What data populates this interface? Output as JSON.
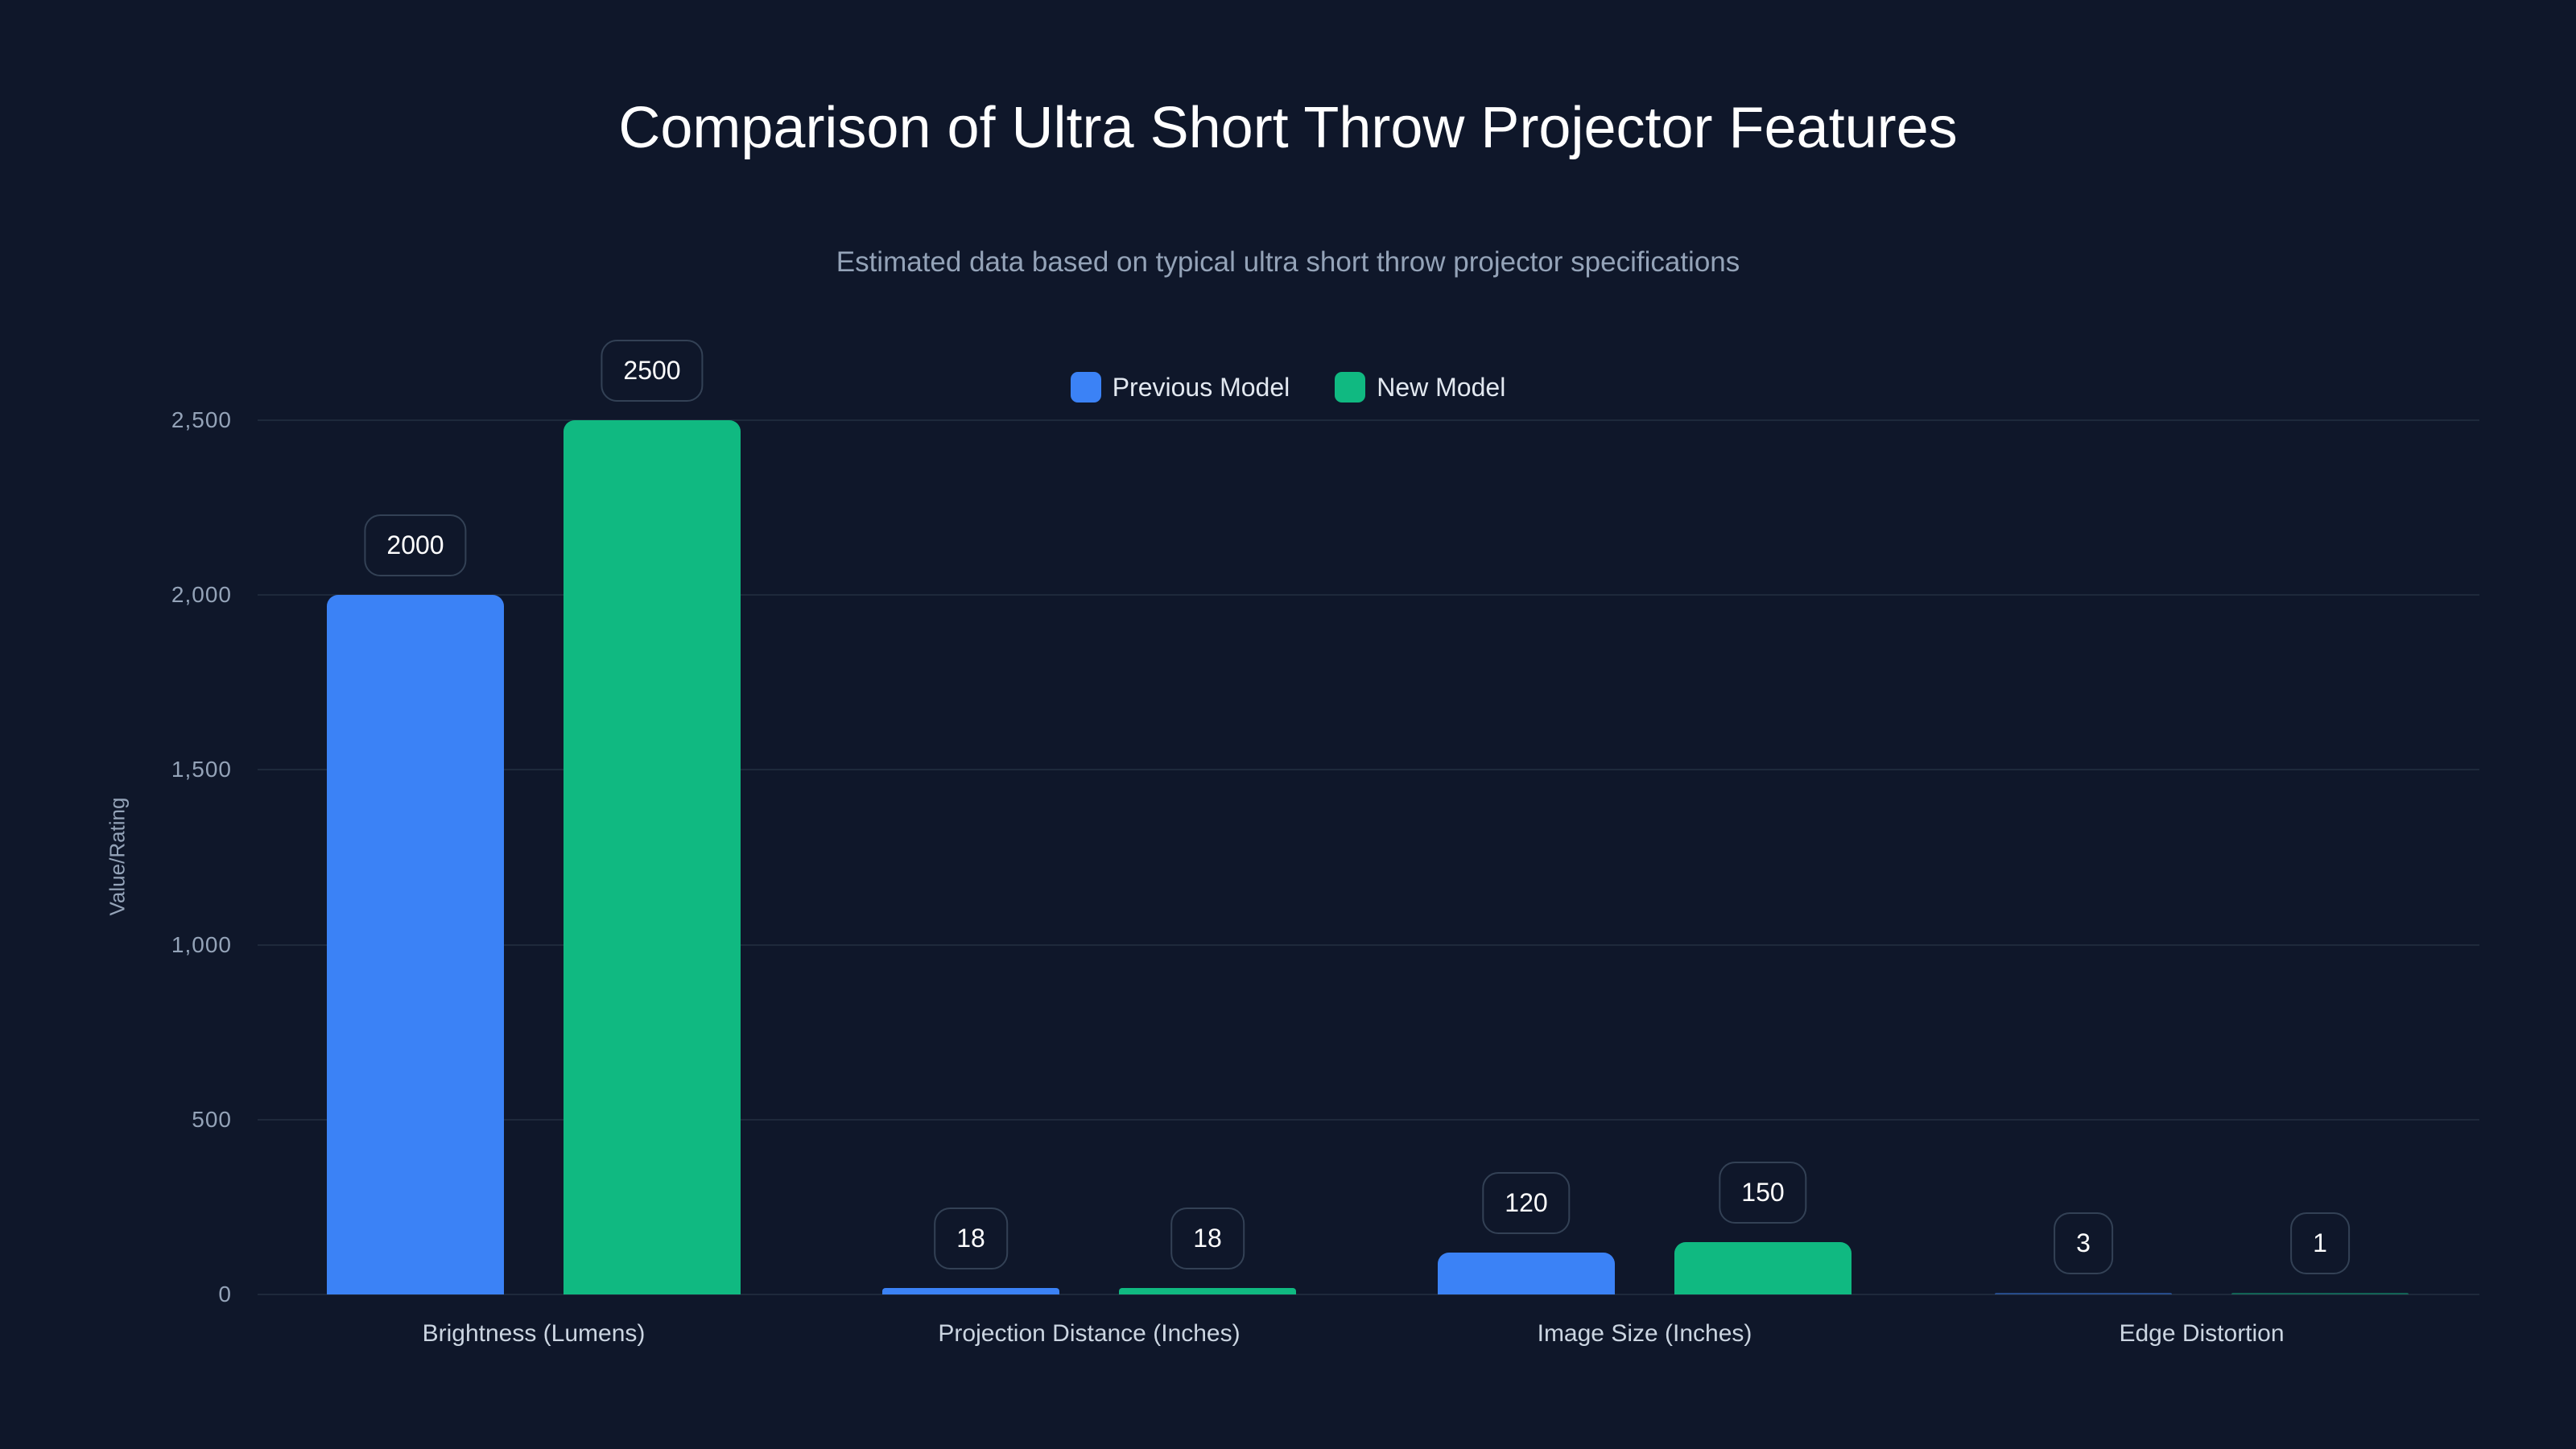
{
  "chart_data": {
    "type": "bar",
    "title": "Comparison of Ultra Short Throw Projector Features",
    "subtitle": "Estimated data based on typical ultra short throw projector specifications",
    "xlabel": "",
    "ylabel": "Value/Rating",
    "ylim": [
      0,
      2500
    ],
    "yticks": [
      "0",
      "500",
      "1,000",
      "1,500",
      "2,000",
      "2,500"
    ],
    "grid": true,
    "legend_position": "top-center",
    "categories": [
      "Brightness (Lumens)",
      "Projection Distance (Inches)",
      "Image Size (Inches)",
      "Edge Distortion"
    ],
    "series": [
      {
        "name": "Previous Model",
        "color": "#3b82f6",
        "values": [
          2000,
          18,
          120,
          3
        ]
      },
      {
        "name": "New Model",
        "color": "#10b981",
        "values": [
          2500,
          18,
          150,
          1
        ]
      }
    ]
  },
  "labels": {
    "bars": [
      [
        "2000",
        "2500"
      ],
      [
        "18",
        "18"
      ],
      [
        "120",
        "150"
      ],
      [
        "3",
        "1"
      ]
    ]
  }
}
